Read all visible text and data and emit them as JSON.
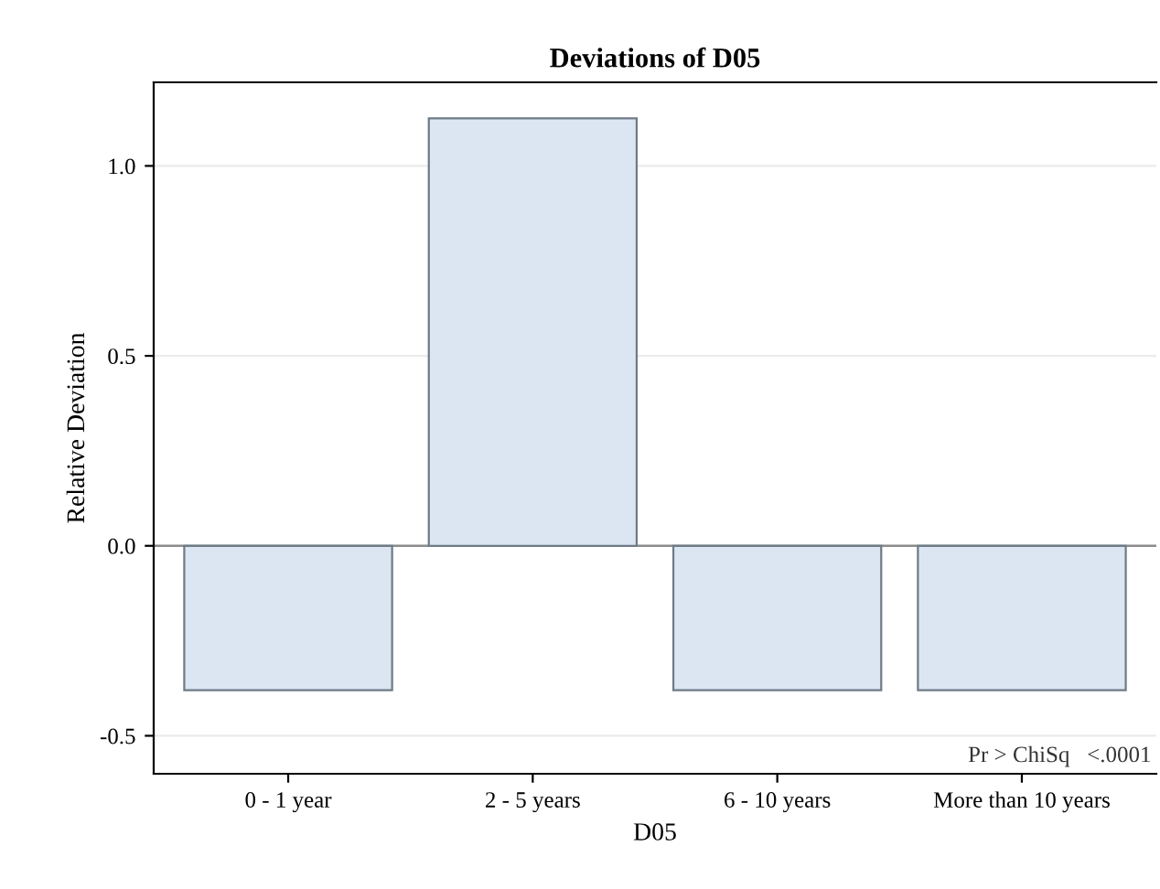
{
  "chart_data": {
    "type": "bar",
    "title": "Deviations of D05",
    "xlabel": "D05",
    "ylabel": "Relative Deviation",
    "categories": [
      "0 - 1 year",
      "2 - 5 years",
      "6 - 10 years",
      "More than 10 years"
    ],
    "values": [
      -0.38,
      1.125,
      -0.38,
      -0.38
    ],
    "color": "#dce6f2",
    "ylim": [
      -0.6,
      1.22
    ],
    "yticks": [
      {
        "value": -0.5,
        "label": "-0.5"
      },
      {
        "value": 0,
        "label": "0.0"
      },
      {
        "value": 0.5,
        "label": "0.5"
      },
      {
        "value": 1,
        "label": "1.0"
      }
    ],
    "grid": "y",
    "ref_lines": [
      {
        "axis": "y",
        "value": 0,
        "color": "#8c8c8c"
      }
    ],
    "annotations": [
      "Pr > ChiSq   <.0001"
    ]
  }
}
